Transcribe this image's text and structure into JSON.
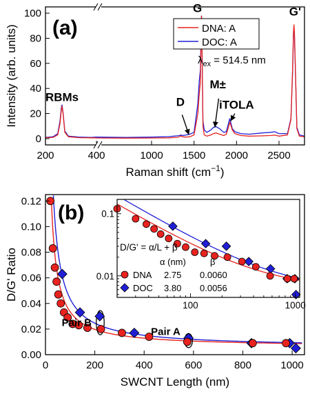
{
  "chart_data": [
    {
      "type": "line",
      "panel_label": "(a)",
      "xlabel": "Raman shift (cm",
      "xlabel_sup": "−1",
      "xlabel_close": ")",
      "ylabel": "Intensity (arb. units)",
      "broken_x_axis": true,
      "x_segments": [
        [
          200,
          400
        ],
        [
          400,
          2800
        ]
      ],
      "ylim": [
        -5,
        105
      ],
      "x_ticks": [
        200,
        400,
        1000,
        1500,
        2000,
        2500
      ],
      "y_ticks": [
        0,
        20,
        40,
        60,
        80,
        100
      ],
      "excitation_label": "λ",
      "excitation_sub": "ex",
      "excitation_value": " = 514.5 nm",
      "peak_labels": [
        {
          "text": "RBMs",
          "x": 265,
          "y": 30
        },
        {
          "text": "D",
          "x": 1340,
          "y": 26
        },
        {
          "text": "G",
          "x": 1540,
          "y": 101
        },
        {
          "text": "M±",
          "x": 1780,
          "y": 40
        },
        {
          "text": "iTOLA",
          "x": 2000,
          "y": 24
        },
        {
          "text": "G'",
          "x": 2690,
          "y": 98
        }
      ],
      "arrows": [
        {
          "from": [
            1360,
            19
          ],
          "to": [
            1440,
            3
          ]
        },
        {
          "from": [
            1790,
            32
          ],
          "to": [
            1745,
            9
          ]
        },
        {
          "from": [
            1980,
            20
          ],
          "to": [
            1930,
            14
          ]
        }
      ],
      "legend": {
        "placement": "top-right"
      },
      "series": [
        {
          "name": "DNA: A",
          "color": "#e8231f",
          "points": [
            [
              200,
              0.8
            ],
            [
              230,
              1.0
            ],
            [
              248,
              3
            ],
            [
              257,
              12
            ],
            [
              262,
              22
            ],
            [
              265,
              26
            ],
            [
              269,
              20
            ],
            [
              276,
              5
            ],
            [
              290,
              1.5
            ],
            [
              330,
              0.8
            ],
            [
              380,
              0.6
            ],
            [
              398,
              0.6
            ],
            [
              400,
              0.5
            ],
            [
              700,
              0.4
            ],
            [
              1000,
              0.5
            ],
            [
              1200,
              0.6
            ],
            [
              1300,
              1.0
            ],
            [
              1330,
              1.5
            ],
            [
              1345,
              2.2
            ],
            [
              1360,
              1.5
            ],
            [
              1400,
              1.2
            ],
            [
              1450,
              1.5
            ],
            [
              1500,
              3
            ],
            [
              1545,
              20
            ],
            [
              1560,
              35
            ],
            [
              1575,
              45
            ],
            [
              1583,
              80
            ],
            [
              1588,
              98
            ],
            [
              1593,
              80
            ],
            [
              1605,
              10
            ],
            [
              1620,
              3
            ],
            [
              1650,
              2
            ],
            [
              1700,
              3
            ],
            [
              1730,
              4
            ],
            [
              1760,
              4.5
            ],
            [
              1800,
              3.5
            ],
            [
              1850,
              2.5
            ],
            [
              1880,
              3.5
            ],
            [
              1905,
              9
            ],
            [
              1920,
              13
            ],
            [
              1932,
              11
            ],
            [
              1950,
              7
            ],
            [
              1980,
              4
            ],
            [
              2050,
              2.5
            ],
            [
              2150,
              2
            ],
            [
              2300,
              2.2
            ],
            [
              2400,
              2.5
            ],
            [
              2450,
              2.8
            ],
            [
              2500,
              2
            ],
            [
              2600,
              3
            ],
            [
              2640,
              15
            ],
            [
              2660,
              55
            ],
            [
              2670,
              85
            ],
            [
              2676,
              91
            ],
            [
              2682,
              85
            ],
            [
              2695,
              50
            ],
            [
              2710,
              8
            ],
            [
              2740,
              2
            ],
            [
              2800,
              1.5
            ]
          ]
        },
        {
          "name": "DOC: A",
          "color": "#1f1fd6",
          "points": [
            [
              200,
              1
            ],
            [
              230,
              1.5
            ],
            [
              248,
              4
            ],
            [
              257,
              14
            ],
            [
              262,
              24
            ],
            [
              265,
              27
            ],
            [
              269,
              21
            ],
            [
              276,
              6
            ],
            [
              290,
              2
            ],
            [
              330,
              1.2
            ],
            [
              380,
              1.0
            ],
            [
              398,
              1.2
            ],
            [
              400,
              1.2
            ],
            [
              700,
              1.0
            ],
            [
              1000,
              1.2
            ],
            [
              1200,
              1.6
            ],
            [
              1300,
              2.2
            ],
            [
              1330,
              2.5
            ],
            [
              1345,
              3
            ],
            [
              1360,
              2.5
            ],
            [
              1400,
              2.8
            ],
            [
              1450,
              3.5
            ],
            [
              1500,
              5
            ],
            [
              1545,
              28
            ],
            [
              1560,
              45
            ],
            [
              1575,
              55
            ],
            [
              1583,
              85
            ],
            [
              1588,
              98
            ],
            [
              1593,
              82
            ],
            [
              1605,
              14
            ],
            [
              1620,
              7
            ],
            [
              1650,
              5
            ],
            [
              1700,
              7
            ],
            [
              1730,
              9
            ],
            [
              1760,
              9.5
            ],
            [
              1800,
              8
            ],
            [
              1850,
              5
            ],
            [
              1880,
              5.5
            ],
            [
              1905,
              12
            ],
            [
              1920,
              16
            ],
            [
              1932,
              13
            ],
            [
              1950,
              8
            ],
            [
              1980,
              5.5
            ],
            [
              2050,
              4
            ],
            [
              2150,
              3.5
            ],
            [
              2300,
              4.5
            ],
            [
              2400,
              5
            ],
            [
              2450,
              5.5
            ],
            [
              2500,
              4
            ],
            [
              2600,
              4
            ],
            [
              2640,
              16
            ],
            [
              2660,
              52
            ],
            [
              2670,
              82
            ],
            [
              2676,
              89
            ],
            [
              2682,
              82
            ],
            [
              2695,
              48
            ],
            [
              2710,
              9
            ],
            [
              2740,
              3
            ],
            [
              2800,
              2
            ]
          ]
        }
      ]
    },
    {
      "type": "scatter",
      "panel_label": "(b)",
      "xlabel": "SWCNT Length (nm)",
      "ylabel": "D/G' Ratio",
      "xlim": [
        0,
        1050
      ],
      "ylim": [
        0,
        0.125
      ],
      "x_ticks": [
        0,
        200,
        400,
        600,
        800,
        1000
      ],
      "y_ticks": [
        0.0,
        0.02,
        0.04,
        0.06,
        0.08,
        0.1,
        0.12
      ],
      "annotations": [
        {
          "text": "Pair B",
          "x": 215,
          "y": 0.024
        },
        {
          "text": "Pair A",
          "x": 575,
          "y": 0.017
        }
      ],
      "ellipses": [
        {
          "cx": 222,
          "cy": 0.025,
          "rx": 16,
          "ry": 0.0095
        },
        {
          "cx": 580,
          "cy": 0.011,
          "rx": 16,
          "ry": 0.0055
        }
      ],
      "series": [
        {
          "name": "DNA",
          "color": "#e8231f",
          "marker": "circle",
          "alpha": 2.75,
          "beta": 0.006,
          "points": [
            [
              20,
              0.12
            ],
            [
              30,
              0.083
            ],
            [
              38,
              0.068
            ],
            [
              45,
              0.057
            ],
            [
              52,
              0.047
            ],
            [
              62,
              0.04
            ],
            [
              75,
              0.033
            ],
            [
              90,
              0.029
            ],
            [
              110,
              0.024
            ],
            [
              135,
              0.023
            ],
            [
              170,
              0.021
            ],
            [
              225,
              0.02
            ],
            [
              310,
              0.017
            ],
            [
              420,
              0.014
            ],
            [
              575,
              0.01
            ],
            [
              840,
              0.009
            ],
            [
              975,
              0.009
            ]
          ]
        },
        {
          "name": "DOC",
          "color": "#1f1fd6",
          "marker": "diamond",
          "alpha": 3.8,
          "beta": 0.0056,
          "points": [
            [
              68,
              0.063
            ],
            [
              140,
              0.033
            ],
            [
              220,
              0.03
            ],
            [
              360,
              0.017
            ],
            [
              580,
              0.013
            ],
            [
              835,
              0.009
            ],
            [
              990,
              0.009
            ],
            [
              1015,
              0.005
            ]
          ]
        }
      ],
      "inset": {
        "xscale": "log",
        "yscale": "log",
        "xlim": [
          20,
          1100
        ],
        "ylim": [
          0.0045,
          0.17
        ],
        "x_ticks": [
          100,
          1000
        ],
        "y_ticks": [
          0.01,
          0.1
        ],
        "formula": "D/G' = α/L + β",
        "col_alpha": "α (nm)",
        "col_beta": "β",
        "rows": [
          {
            "name": "DNA",
            "alpha": "2.75",
            "beta": "0.0060"
          },
          {
            "name": "DOC",
            "alpha": "3.80",
            "beta": "0.0056"
          }
        ]
      }
    }
  ]
}
